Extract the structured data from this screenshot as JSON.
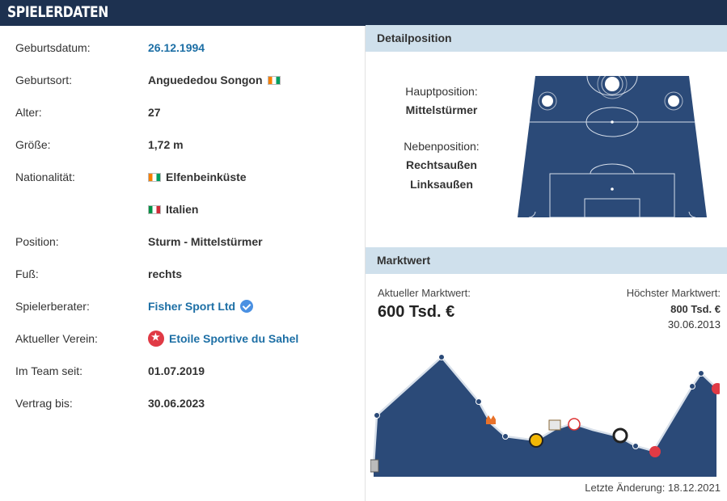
{
  "header": {
    "title": "SPIELERDATEN"
  },
  "player": {
    "rows": [
      {
        "label": "Geburtsdatum:",
        "value": "26.12.1994"
      },
      {
        "label": "Geburtsort:",
        "value": "Anguededou Songon"
      },
      {
        "label": "Alter:",
        "value": "27"
      },
      {
        "label": "Größe:",
        "value": "1,72 m"
      },
      {
        "label": "Nationalität:",
        "value": "Elfenbeinküste"
      },
      {
        "label": "",
        "value": "Italien"
      },
      {
        "label": "Position:",
        "value": "Sturm - Mittelstürmer"
      },
      {
        "label": "Fuß:",
        "value": "rechts"
      },
      {
        "label": "Spielerberater:",
        "value": "Fisher Sport Ltd"
      },
      {
        "label": "Aktueller Verein:",
        "value": "Etoile Sportive du Sahel"
      },
      {
        "label": "Im Team seit:",
        "value": "01.07.2019"
      },
      {
        "label": "Vertrag bis:",
        "value": "30.06.2023"
      }
    ]
  },
  "detail": {
    "title": "Detailposition",
    "main_label": "Hauptposition:",
    "main_value": "Mittelstürmer",
    "side_label": "Nebenposition:",
    "side_values": [
      "Rechtsaußen",
      "Linksaußen"
    ]
  },
  "market": {
    "title": "Marktwert",
    "current_label": "Aktueller Marktwert:",
    "current_value": "600 Tsd. €",
    "max_label": "Höchster Marktwert:",
    "max_value": "800 Tsd. €",
    "max_date": "30.06.2013",
    "last_change": "Letzte Änderung: 18.12.2021"
  },
  "colors": {
    "header": "#1d3150",
    "link": "#1d6fa5",
    "pitch": "#2b4a78",
    "section": "#cfe0ec"
  }
}
